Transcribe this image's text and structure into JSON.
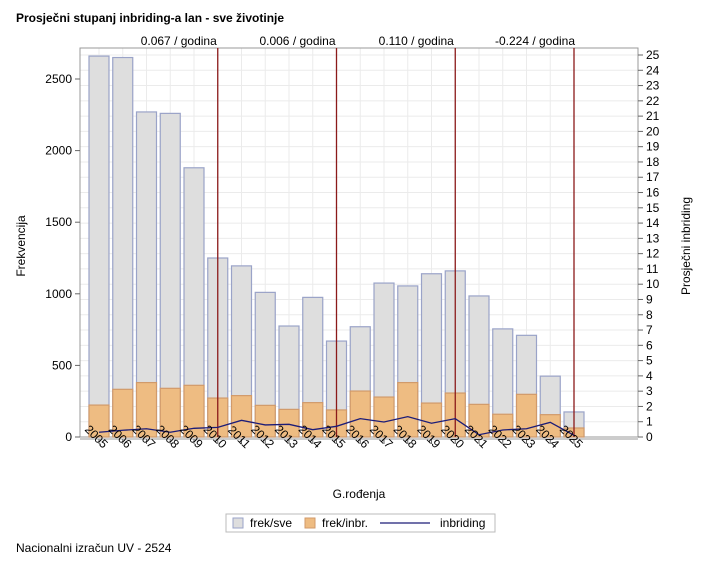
{
  "title": "Prosječni stupanj inbriding-a lan - sve životinje",
  "footer": "Nacionalni izračun UV - 2524",
  "chart_data": {
    "type": "bar",
    "title": "Prosječni stupanj inbriding-a lan - sve životinje",
    "xlabel": "G.rođenja",
    "ylabel": "Frekvencija",
    "y2label": "Prosječni inbriding",
    "ylim": [
      0,
      2500
    ],
    "y2lim": [
      0,
      25
    ],
    "yticks": [
      0,
      500,
      1000,
      1500,
      2000,
      2500
    ],
    "y2ticks": [
      0,
      1,
      2,
      3,
      4,
      5,
      6,
      7,
      8,
      9,
      10,
      11,
      12,
      13,
      14,
      15,
      16,
      17,
      18,
      19,
      20,
      21,
      22,
      23,
      24,
      25
    ],
    "grid": true,
    "legend_position": "bottom",
    "categories": [
      "2005",
      "2006",
      "2007",
      "2008",
      "2009",
      "2010",
      "2011",
      "2012",
      "2013",
      "2014",
      "2015",
      "2016",
      "2017",
      "2018",
      "2019",
      "2020",
      "2021",
      "2022",
      "2023",
      "2024",
      "2025"
    ],
    "series": [
      {
        "name": "frek/sve",
        "type": "bar",
        "color": "#dedede",
        "stroke": "#9aa3c8",
        "values": [
          2660,
          2650,
          2270,
          2260,
          1880,
          1250,
          1195,
          1010,
          775,
          975,
          670,
          770,
          1075,
          1055,
          1140,
          1160,
          985,
          755,
          710,
          425,
          175
        ]
      },
      {
        "name": "frek/inbr.",
        "type": "bar",
        "color": "#eebc82",
        "stroke": "#d19a6a",
        "values": [
          223,
          333,
          380,
          340,
          361,
          272,
          289,
          221,
          193,
          240,
          189,
          321,
          279,
          380,
          237,
          307,
          228,
          159,
          298,
          156,
          63
        ]
      },
      {
        "name": "inbriding",
        "type": "line",
        "axis": "right",
        "color": "#1c1c78",
        "values": [
          0.31,
          0.44,
          0.54,
          0.31,
          0.57,
          0.63,
          1.09,
          0.79,
          0.83,
          0.48,
          0.7,
          1.2,
          0.98,
          1.33,
          0.9,
          1.2,
          0.15,
          0.46,
          0.54,
          0.96,
          0.11
        ]
      }
    ],
    "reference_lines": [
      {
        "x": "2010",
        "label": "0.067 / godina",
        "color": "#8b1a1a"
      },
      {
        "x": "2015",
        "label": "0.006 / godina",
        "color": "#8b1a1a"
      },
      {
        "x": "2020",
        "label": "0.110 / godina",
        "color": "#8b1a1a"
      },
      {
        "x": "2025",
        "label": "-0.224 / godina",
        "color": "#8b1a1a"
      }
    ]
  }
}
